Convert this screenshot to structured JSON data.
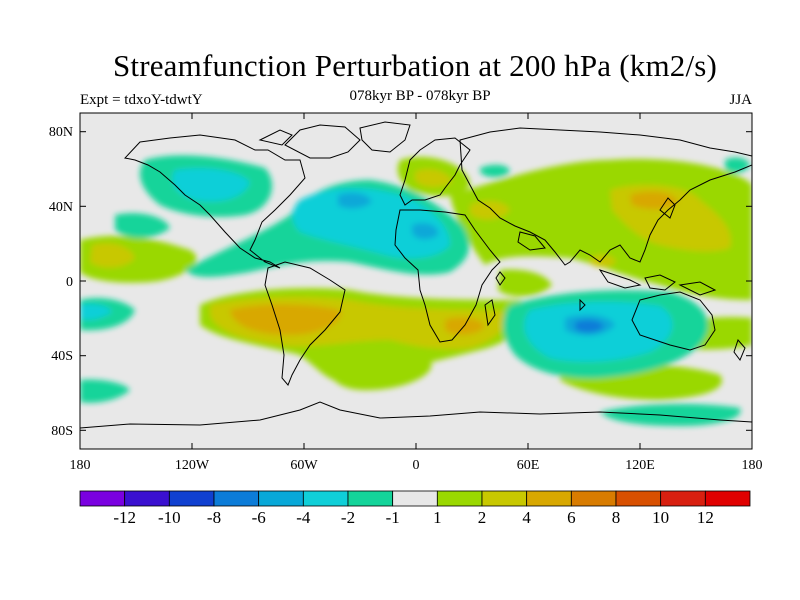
{
  "title": "Streamfunction Perturbation at 200 hPa (km2/s)",
  "left_subtitle": "Expt = tdxoY-tdwtY",
  "center_subtitle": "078kyr BP - 078kyr BP",
  "right_subtitle": "JJA",
  "chart_data": {
    "type": "heatmap",
    "map": "global filled contour map, 180W to 180E, 90S to 90N",
    "variable": "Streamfunction Perturbation at 200 hPa",
    "units": "km2/s",
    "lat_ticks": [
      "80N",
      "40N",
      "0",
      "40S",
      "80S"
    ],
    "lon_ticks": [
      "180",
      "120W",
      "60W",
      "0",
      "60E",
      "120E",
      "180"
    ],
    "colorbar": {
      "labels": [
        "-12",
        "-10",
        "-8",
        "-6",
        "-4",
        "-2",
        "-1",
        "1",
        "2",
        "4",
        "6",
        "8",
        "10",
        "12"
      ],
      "colors": [
        "#7a00e0",
        "#3a10d0",
        "#1040d0",
        "#0c7cd8",
        "#08a8d8",
        "#10cfd8",
        "#14d49a",
        "#e8e8e8",
        "#9ad800",
        "#c8c800",
        "#d8a800",
        "#d87c00",
        "#d85000",
        "#d82010",
        "#e00000"
      ]
    },
    "regions": [
      {
        "name": "North Atlantic low",
        "min_value": -6,
        "area": "Atlantic 40N-10N"
      },
      {
        "name": "Australia low",
        "min_value": -6,
        "area": "Indian Ocean / Australia 20S-40S"
      },
      {
        "name": "South America high",
        "max_value": 6,
        "area": "South America 10S-30S"
      },
      {
        "name": "Asia high",
        "max_value": 4,
        "area": "East Asia 20N-40N"
      }
    ]
  }
}
